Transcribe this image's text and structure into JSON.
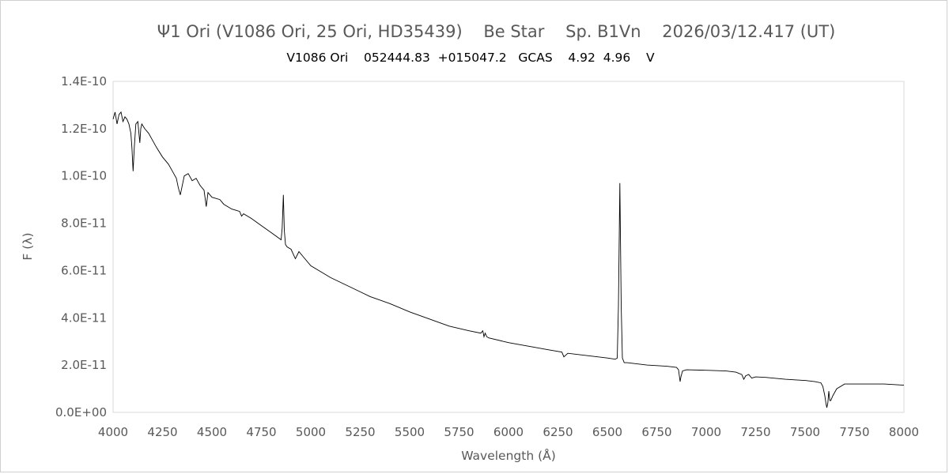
{
  "chart_data": {
    "type": "line",
    "title": "Ψ1 Ori (V1086 Ori, 25 Ori, HD35439)    Be Star    Sp. B1Vn    2026/03/12.417 (UT)",
    "subtitle": "V1086 Ori    052444.83  +015047.2   GCAS    4.92  4.96    V",
    "xlabel": "Wavelength (Å)",
    "ylabel": "F (λ)",
    "xlim": [
      4000,
      8000
    ],
    "ylim": [
      0,
      1.4e-10
    ],
    "x_ticks": [
      "4000",
      "4250",
      "4500",
      "4750",
      "5000",
      "5250",
      "5500",
      "5750",
      "6000",
      "6250",
      "6500",
      "6750",
      "7000",
      "7250",
      "7500",
      "7750",
      "8000"
    ],
    "y_ticks": [
      "0.0E+00",
      "2.0E-11",
      "4.0E-11",
      "6.0E-11",
      "8.0E-11",
      "1.0E-10",
      "1.2E-10",
      "1.4E-10"
    ],
    "gridlines": "none",
    "legend": "none",
    "line_color": "#000000",
    "series": [
      {
        "x": [
          4000,
          4010,
          4020,
          4030,
          4040,
          4050,
          4060,
          4070,
          4080,
          4090,
          4095,
          4101,
          4107,
          4115,
          4125,
          4135,
          4140,
          4145,
          4160,
          4180,
          4200,
          4220,
          4250,
          4280,
          4300,
          4320,
          4330,
          4340,
          4350,
          4360,
          4380,
          4400,
          4420,
          4440,
          4460,
          4471,
          4480,
          4500,
          4540,
          4560,
          4600,
          4640,
          4650,
          4660,
          4700,
          4750,
          4800,
          4850,
          4855,
          4861,
          4866,
          4872,
          4880,
          4900,
          4922,
          4940,
          4960,
          5000,
          5050,
          5100,
          5150,
          5200,
          5250,
          5300,
          5400,
          5500,
          5600,
          5700,
          5800,
          5860,
          5870,
          5876,
          5882,
          5890,
          5900,
          6000,
          6100,
          6200,
          6270,
          6280,
          6300,
          6400,
          6500,
          6540,
          6550,
          6556,
          6563,
          6570,
          6576,
          6585,
          6600,
          6700,
          6800,
          6850,
          6860,
          6868,
          6872,
          6880,
          6900,
          7000,
          7100,
          7150,
          7180,
          7190,
          7200,
          7215,
          7230,
          7250,
          7300,
          7400,
          7500,
          7550,
          7580,
          7590,
          7600,
          7605,
          7610,
          7615,
          7620,
          7625,
          7630,
          7640,
          7660,
          7700,
          7750,
          7800,
          7900,
          8000
        ],
        "y": [
          1.24e-10,
          1.27e-10,
          1.22e-10,
          1.26e-10,
          1.27e-10,
          1.23e-10,
          1.25e-10,
          1.24e-10,
          1.22e-10,
          1.18e-10,
          1.12e-10,
          1.02e-10,
          1.12e-10,
          1.22e-10,
          1.23e-10,
          1.14e-10,
          1.2e-10,
          1.22e-10,
          1.2e-10,
          1.18e-10,
          1.15e-10,
          1.12e-10,
          1.08e-10,
          1.05e-10,
          1.02e-10,
          9.9e-11,
          9.5e-11,
          9.2e-11,
          9.6e-11,
          1e-10,
          1.01e-10,
          9.8e-11,
          9.9e-11,
          9.6e-11,
          9.4e-11,
          8.7e-11,
          9.3e-11,
          9.1e-11,
          9e-11,
          8.8e-11,
          8.6e-11,
          8.5e-11,
          8.3e-11,
          8.4e-11,
          8.2e-11,
          7.9e-11,
          7.6e-11,
          7.3e-11,
          7.8e-11,
          9.2e-11,
          7.7e-11,
          7.1e-11,
          7e-11,
          6.9e-11,
          6.5e-11,
          6.8e-11,
          6.6e-11,
          6.2e-11,
          5.95e-11,
          5.7e-11,
          5.5e-11,
          5.3e-11,
          5.1e-11,
          4.9e-11,
          4.6e-11,
          4.25e-11,
          3.95e-11,
          3.65e-11,
          3.45e-11,
          3.35e-11,
          3.45e-11,
          3.2e-11,
          3.35e-11,
          3.2e-11,
          3.15e-11,
          2.95e-11,
          2.8e-11,
          2.65e-11,
          2.55e-11,
          2.35e-11,
          2.5e-11,
          2.4e-11,
          2.3e-11,
          2.25e-11,
          2.3e-11,
          4.5e-11,
          9.7e-11,
          4.5e-11,
          2.3e-11,
          2.1e-11,
          2.1e-11,
          2e-11,
          1.95e-11,
          1.9e-11,
          1.8e-11,
          1.3e-11,
          1.5e-11,
          1.75e-11,
          1.8e-11,
          1.78e-11,
          1.75e-11,
          1.7e-11,
          1.6e-11,
          1.4e-11,
          1.55e-11,
          1.6e-11,
          1.45e-11,
          1.5e-11,
          1.48e-11,
          1.4e-11,
          1.35e-11,
          1.3e-11,
          1.25e-11,
          1.1e-11,
          7e-12,
          4e-12,
          2e-12,
          4e-12,
          9e-12,
          5e-12,
          5e-12,
          7e-12,
          1e-11,
          1.2e-11,
          1.2e-11,
          1.2e-11,
          1.2e-11,
          1.15e-11
        ]
      }
    ]
  }
}
